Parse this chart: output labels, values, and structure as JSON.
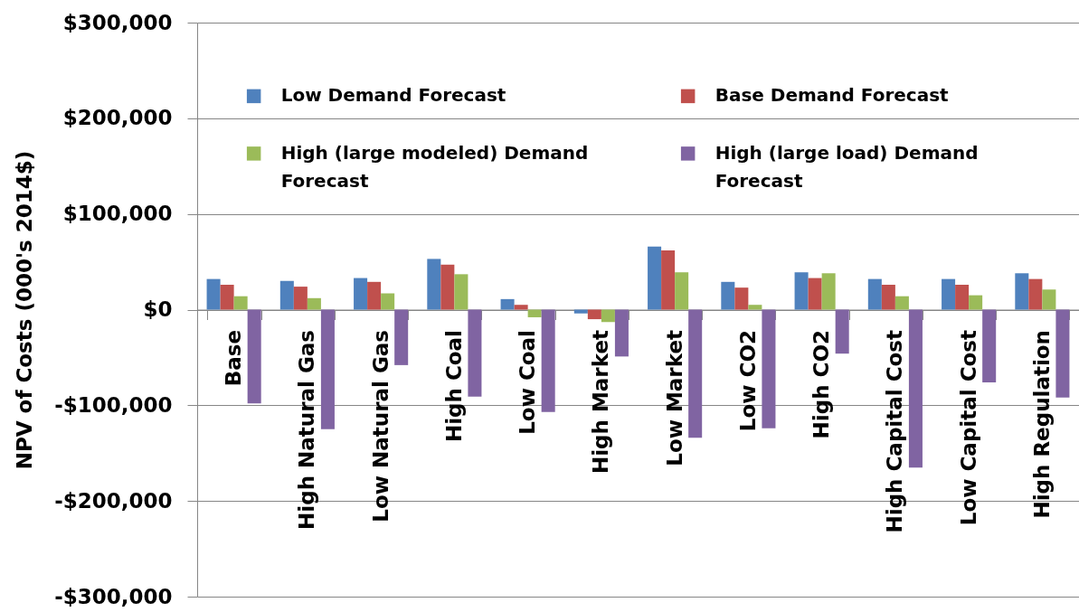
{
  "chart_data": {
    "type": "bar",
    "ylabel": "NPV of Costs (000's 2014$)",
    "categories": [
      "Base",
      "High Natural Gas",
      "Low Natural Gas",
      "High Coal",
      "Low Coal",
      "High Market",
      "Low Market",
      "Low CO2",
      "High CO2",
      "High Capital Cost",
      "Low Capital Cost",
      "High Regulation"
    ],
    "series": [
      {
        "name": "Low Demand Forecast",
        "color": "#4f81bd",
        "values": [
          32000,
          30000,
          33000,
          53000,
          11000,
          -4000,
          66000,
          29000,
          39000,
          32000,
          32000,
          38000
        ]
      },
      {
        "name": "Base Demand Forecast",
        "color": "#c0504d",
        "values": [
          26000,
          24000,
          29000,
          47000,
          5000,
          -10000,
          62000,
          23000,
          33000,
          26000,
          26000,
          32000
        ]
      },
      {
        "name": "High (large modeled) Demand Forecast",
        "color": "#9bbb59",
        "values": [
          14000,
          12000,
          17000,
          37000,
          -8000,
          -13000,
          39000,
          5000,
          38000,
          14000,
          15000,
          21000
        ]
      },
      {
        "name": "High (large load) Demand Forecast",
        "color": "#8064a2",
        "values": [
          -98000,
          -125000,
          -58000,
          -91000,
          -107000,
          -49000,
          -134000,
          -124000,
          -46000,
          -165000,
          -76000,
          -92000
        ]
      }
    ],
    "ylim": [
      -300000,
      300000
    ],
    "yticks": [
      {
        "value": -300000,
        "label": "-$300,000"
      },
      {
        "value": -200000,
        "label": "-$200,000"
      },
      {
        "value": -100000,
        "label": "-$100,000"
      },
      {
        "value": 0,
        "label": "$0"
      },
      {
        "value": 100000,
        "label": "$100,000"
      },
      {
        "value": 200000,
        "label": "$200,000"
      },
      {
        "value": 300000,
        "label": "$300,000"
      }
    ],
    "grid": "y",
    "legend": "top"
  }
}
